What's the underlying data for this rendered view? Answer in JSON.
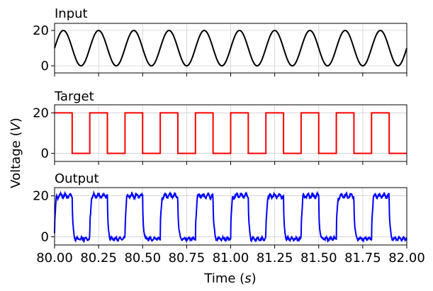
{
  "chart_data": [
    {
      "type": "line",
      "title": "Input",
      "xlabel": "",
      "ylabel": "",
      "xlim": [
        80.0,
        82.0
      ],
      "ylim": [
        -4,
        24
      ],
      "yticks": [
        0,
        20
      ],
      "grid": true,
      "series": [
        {
          "color": "#000000",
          "waveform": "sine",
          "offset": 10,
          "amplitude": 10,
          "frequency_hz": 5,
          "phase_deg": 0
        }
      ]
    },
    {
      "type": "line",
      "title": "Target",
      "xlabel": "",
      "ylabel": "",
      "xlim": [
        80.0,
        82.0
      ],
      "ylim": [
        -4,
        24
      ],
      "yticks": [
        0,
        20
      ],
      "grid": true,
      "series": [
        {
          "color": "#ff0000",
          "waveform": "square",
          "high": 20,
          "low": 0,
          "frequency_hz": 5,
          "duty": 0.5
        }
      ]
    },
    {
      "type": "line",
      "title": "Output",
      "xlabel": "Time (s)",
      "ylabel": "",
      "xlim": [
        80.0,
        82.0
      ],
      "ylim": [
        -4,
        24
      ],
      "yticks": [
        0,
        20
      ],
      "xticks": [
        "80.00",
        "80.25",
        "80.50",
        "80.75",
        "81.00",
        "81.25",
        "81.50",
        "81.75",
        "82.00"
      ],
      "grid": true,
      "series": [
        {
          "color": "#0000ff",
          "waveform": "square_with_ringing",
          "high": 20,
          "low": -1,
          "frequency_hz": 5,
          "duty": 0.5
        }
      ]
    }
  ],
  "shared_ylabel": "Voltage (V)"
}
